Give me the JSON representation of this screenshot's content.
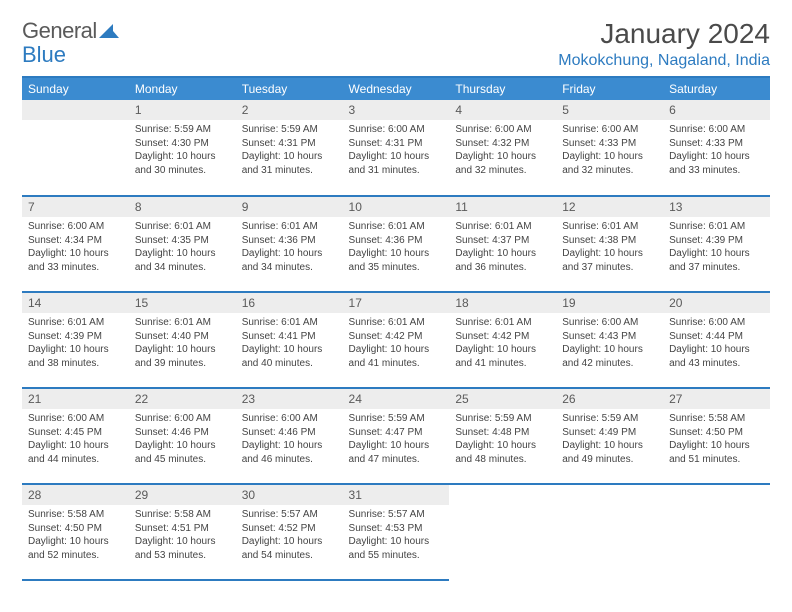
{
  "logo": {
    "text1": "General",
    "text2": "Blue"
  },
  "title": "January 2024",
  "location": "Mokokchung, Nagaland, India",
  "weekdays": [
    "Sunday",
    "Monday",
    "Tuesday",
    "Wednesday",
    "Thursday",
    "Friday",
    "Saturday"
  ],
  "colors": {
    "header_bg": "#3b8bd0",
    "header_text": "#ffffff",
    "rule": "#2d7bc0",
    "daynum_bg": "#ededed",
    "location_text": "#2d7bc0"
  },
  "weeks": [
    [
      {
        "day": "",
        "sunrise": "",
        "sunset": "",
        "daylight": ""
      },
      {
        "day": "1",
        "sunrise": "5:59 AM",
        "sunset": "4:30 PM",
        "daylight": "10 hours and 30 minutes."
      },
      {
        "day": "2",
        "sunrise": "5:59 AM",
        "sunset": "4:31 PM",
        "daylight": "10 hours and 31 minutes."
      },
      {
        "day": "3",
        "sunrise": "6:00 AM",
        "sunset": "4:31 PM",
        "daylight": "10 hours and 31 minutes."
      },
      {
        "day": "4",
        "sunrise": "6:00 AM",
        "sunset": "4:32 PM",
        "daylight": "10 hours and 32 minutes."
      },
      {
        "day": "5",
        "sunrise": "6:00 AM",
        "sunset": "4:33 PM",
        "daylight": "10 hours and 32 minutes."
      },
      {
        "day": "6",
        "sunrise": "6:00 AM",
        "sunset": "4:33 PM",
        "daylight": "10 hours and 33 minutes."
      }
    ],
    [
      {
        "day": "7",
        "sunrise": "6:00 AM",
        "sunset": "4:34 PM",
        "daylight": "10 hours and 33 minutes."
      },
      {
        "day": "8",
        "sunrise": "6:01 AM",
        "sunset": "4:35 PM",
        "daylight": "10 hours and 34 minutes."
      },
      {
        "day": "9",
        "sunrise": "6:01 AM",
        "sunset": "4:36 PM",
        "daylight": "10 hours and 34 minutes."
      },
      {
        "day": "10",
        "sunrise": "6:01 AM",
        "sunset": "4:36 PM",
        "daylight": "10 hours and 35 minutes."
      },
      {
        "day": "11",
        "sunrise": "6:01 AM",
        "sunset": "4:37 PM",
        "daylight": "10 hours and 36 minutes."
      },
      {
        "day": "12",
        "sunrise": "6:01 AM",
        "sunset": "4:38 PM",
        "daylight": "10 hours and 37 minutes."
      },
      {
        "day": "13",
        "sunrise": "6:01 AM",
        "sunset": "4:39 PM",
        "daylight": "10 hours and 37 minutes."
      }
    ],
    [
      {
        "day": "14",
        "sunrise": "6:01 AM",
        "sunset": "4:39 PM",
        "daylight": "10 hours and 38 minutes."
      },
      {
        "day": "15",
        "sunrise": "6:01 AM",
        "sunset": "4:40 PM",
        "daylight": "10 hours and 39 minutes."
      },
      {
        "day": "16",
        "sunrise": "6:01 AM",
        "sunset": "4:41 PM",
        "daylight": "10 hours and 40 minutes."
      },
      {
        "day": "17",
        "sunrise": "6:01 AM",
        "sunset": "4:42 PM",
        "daylight": "10 hours and 41 minutes."
      },
      {
        "day": "18",
        "sunrise": "6:01 AM",
        "sunset": "4:42 PM",
        "daylight": "10 hours and 41 minutes."
      },
      {
        "day": "19",
        "sunrise": "6:00 AM",
        "sunset": "4:43 PM",
        "daylight": "10 hours and 42 minutes."
      },
      {
        "day": "20",
        "sunrise": "6:00 AM",
        "sunset": "4:44 PM",
        "daylight": "10 hours and 43 minutes."
      }
    ],
    [
      {
        "day": "21",
        "sunrise": "6:00 AM",
        "sunset": "4:45 PM",
        "daylight": "10 hours and 44 minutes."
      },
      {
        "day": "22",
        "sunrise": "6:00 AM",
        "sunset": "4:46 PM",
        "daylight": "10 hours and 45 minutes."
      },
      {
        "day": "23",
        "sunrise": "6:00 AM",
        "sunset": "4:46 PM",
        "daylight": "10 hours and 46 minutes."
      },
      {
        "day": "24",
        "sunrise": "5:59 AM",
        "sunset": "4:47 PM",
        "daylight": "10 hours and 47 minutes."
      },
      {
        "day": "25",
        "sunrise": "5:59 AM",
        "sunset": "4:48 PM",
        "daylight": "10 hours and 48 minutes."
      },
      {
        "day": "26",
        "sunrise": "5:59 AM",
        "sunset": "4:49 PM",
        "daylight": "10 hours and 49 minutes."
      },
      {
        "day": "27",
        "sunrise": "5:58 AM",
        "sunset": "4:50 PM",
        "daylight": "10 hours and 51 minutes."
      }
    ],
    [
      {
        "day": "28",
        "sunrise": "5:58 AM",
        "sunset": "4:50 PM",
        "daylight": "10 hours and 52 minutes."
      },
      {
        "day": "29",
        "sunrise": "5:58 AM",
        "sunset": "4:51 PM",
        "daylight": "10 hours and 53 minutes."
      },
      {
        "day": "30",
        "sunrise": "5:57 AM",
        "sunset": "4:52 PM",
        "daylight": "10 hours and 54 minutes."
      },
      {
        "day": "31",
        "sunrise": "5:57 AM",
        "sunset": "4:53 PM",
        "daylight": "10 hours and 55 minutes."
      },
      {
        "day": "",
        "sunrise": "",
        "sunset": "",
        "daylight": ""
      },
      {
        "day": "",
        "sunrise": "",
        "sunset": "",
        "daylight": ""
      },
      {
        "day": "",
        "sunrise": "",
        "sunset": "",
        "daylight": ""
      }
    ]
  ],
  "labels": {
    "sunrise": "Sunrise:",
    "sunset": "Sunset:",
    "daylight": "Daylight:"
  }
}
